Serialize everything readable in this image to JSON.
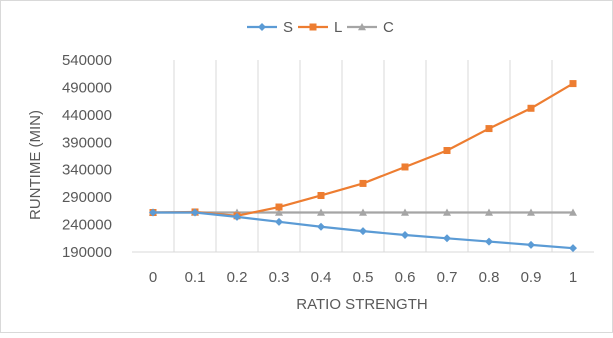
{
  "chart_data": {
    "type": "line",
    "title": "",
    "xlabel": "RATIO STRENGTH",
    "ylabel": "RUNTIME (MIN)",
    "x": [
      "0",
      "0.1",
      "0.2",
      "0.3",
      "0.4",
      "0.5",
      "0.6",
      "0.7",
      "0.8",
      "0.9",
      "1"
    ],
    "ylim": [
      190000,
      540000
    ],
    "yticks": [
      "190000",
      "240000",
      "290000",
      "340000",
      "390000",
      "440000",
      "490000",
      "540000"
    ],
    "grid": "vertical",
    "legend_position": "top",
    "series": [
      {
        "name": "S",
        "color": "#5B9BD5",
        "marker": "diamond",
        "values": [
          262000,
          262000,
          254000,
          245000,
          236000,
          228000,
          221000,
          215000,
          209000,
          203000,
          197000
        ]
      },
      {
        "name": "L",
        "color": "#ED7D31",
        "marker": "square",
        "values": [
          262000,
          263000,
          256000,
          272000,
          293000,
          315000,
          345000,
          375000,
          415000,
          452000,
          497000
        ]
      },
      {
        "name": "C",
        "color": "#A5A5A5",
        "marker": "triangle",
        "values": [
          262000,
          262000,
          262000,
          262000,
          262000,
          262000,
          262000,
          262000,
          262000,
          262000,
          262000
        ]
      }
    ]
  }
}
